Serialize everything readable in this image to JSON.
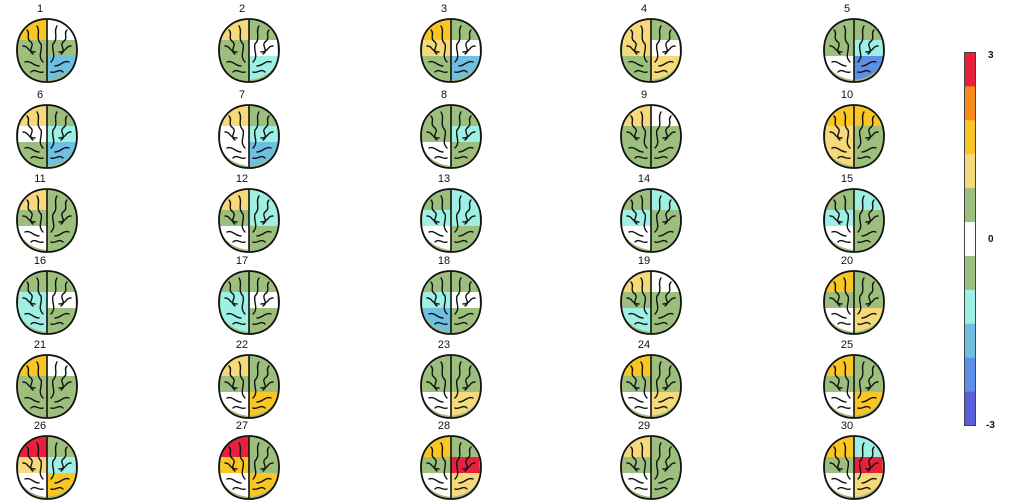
{
  "figure": {
    "panels": [
      {
        "label": "1",
        "colors": [
          "#f9c623",
          "#9dbf7d",
          "#9dbf7d",
          "#ffffff",
          "#9dbf7d",
          "#6fbfe0"
        ]
      },
      {
        "label": "2",
        "colors": [
          "#f6d97a",
          "#9dbf7d",
          "#9dbf7d",
          "#9dbf7d",
          "#ffffff",
          "#9ff0e4"
        ]
      },
      {
        "label": "3",
        "colors": [
          "#f9c623",
          "#f6d97a",
          "#9dbf7d",
          "#9dbf7d",
          "#ffffff",
          "#6fbfe0"
        ]
      },
      {
        "label": "4",
        "colors": [
          "#f6d97a",
          "#f6d97a",
          "#9dbf7d",
          "#9dbf7d",
          "#ffffff",
          "#f6d97a"
        ]
      },
      {
        "label": "5",
        "colors": [
          "#9dbf7d",
          "#9dbf7d",
          "#ffffff",
          "#9dbf7d",
          "#9ff0e4",
          "#5b8fe8"
        ]
      },
      {
        "label": "6",
        "colors": [
          "#f6d97a",
          "#ffffff",
          "#9dbf7d",
          "#9dbf7d",
          "#9ff0e4",
          "#6fbfe0"
        ]
      },
      {
        "label": "7",
        "colors": [
          "#f6d97a",
          "#ffffff",
          "#ffffff",
          "#9dbf7d",
          "#9ff0e4",
          "#6fbfe0"
        ]
      },
      {
        "label": "8",
        "colors": [
          "#9dbf7d",
          "#9dbf7d",
          "#ffffff",
          "#9dbf7d",
          "#9ff0e4",
          "#9dbf7d"
        ]
      },
      {
        "label": "9",
        "colors": [
          "#f6d97a",
          "#9dbf7d",
          "#9dbf7d",
          "#ffffff",
          "#9dbf7d",
          "#9dbf7d"
        ]
      },
      {
        "label": "10",
        "colors": [
          "#f9c623",
          "#f6d97a",
          "#f6d97a",
          "#f9c623",
          "#9dbf7d",
          "#9dbf7d"
        ]
      },
      {
        "label": "11",
        "colors": [
          "#f6d97a",
          "#9dbf7d",
          "#ffffff",
          "#9dbf7d",
          "#9dbf7d",
          "#9dbf7d"
        ]
      },
      {
        "label": "12",
        "colors": [
          "#f6d97a",
          "#9dbf7d",
          "#ffffff",
          "#9ff0e4",
          "#9ff0e4",
          "#9dbf7d"
        ]
      },
      {
        "label": "13",
        "colors": [
          "#9dbf7d",
          "#9ff0e4",
          "#ffffff",
          "#9ff0e4",
          "#9ff0e4",
          "#9dbf7d"
        ]
      },
      {
        "label": "14",
        "colors": [
          "#9dbf7d",
          "#9ff0e4",
          "#ffffff",
          "#9ff0e4",
          "#9dbf7d",
          "#9dbf7d"
        ]
      },
      {
        "label": "15",
        "colors": [
          "#9dbf7d",
          "#9ff0e4",
          "#ffffff",
          "#9ff0e4",
          "#9dbf7d",
          "#9dbf7d"
        ]
      },
      {
        "label": "16",
        "colors": [
          "#9dbf7d",
          "#9ff0e4",
          "#9ff0e4",
          "#9dbf7d",
          "#ffffff",
          "#9dbf7d"
        ]
      },
      {
        "label": "17",
        "colors": [
          "#9dbf7d",
          "#9ff0e4",
          "#9ff0e4",
          "#9dbf7d",
          "#ffffff",
          "#9dbf7d"
        ]
      },
      {
        "label": "18",
        "colors": [
          "#9dbf7d",
          "#9ff0e4",
          "#6fbfe0",
          "#9dbf7d",
          "#ffffff",
          "#9dbf7d"
        ]
      },
      {
        "label": "19",
        "colors": [
          "#f6d97a",
          "#9dbf7d",
          "#9ff0e4",
          "#ffffff",
          "#9dbf7d",
          "#9dbf7d"
        ]
      },
      {
        "label": "20",
        "colors": [
          "#f9c623",
          "#9dbf7d",
          "#ffffff",
          "#9dbf7d",
          "#9dbf7d",
          "#f6d97a"
        ]
      },
      {
        "label": "21",
        "colors": [
          "#f9c623",
          "#9dbf7d",
          "#9dbf7d",
          "#ffffff",
          "#9dbf7d",
          "#9dbf7d"
        ]
      },
      {
        "label": "22",
        "colors": [
          "#f6d97a",
          "#9dbf7d",
          "#ffffff",
          "#9dbf7d",
          "#9dbf7d",
          "#f9c623"
        ]
      },
      {
        "label": "23",
        "colors": [
          "#9dbf7d",
          "#9dbf7d",
          "#ffffff",
          "#9dbf7d",
          "#9dbf7d",
          "#f6d97a"
        ]
      },
      {
        "label": "24",
        "colors": [
          "#f9c623",
          "#9dbf7d",
          "#ffffff",
          "#9dbf7d",
          "#9dbf7d",
          "#f6d97a"
        ]
      },
      {
        "label": "25",
        "colors": [
          "#f9c623",
          "#9dbf7d",
          "#ffffff",
          "#9dbf7d",
          "#9dbf7d",
          "#f9c623"
        ]
      },
      {
        "label": "26",
        "colors": [
          "#e8203c",
          "#f6d97a",
          "#ffffff",
          "#9dbf7d",
          "#9ff0e4",
          "#f9c623"
        ]
      },
      {
        "label": "27",
        "colors": [
          "#e8203c",
          "#f9c623",
          "#ffffff",
          "#9dbf7d",
          "#9dbf7d",
          "#f9c623"
        ]
      },
      {
        "label": "28",
        "colors": [
          "#f9c623",
          "#9dbf7d",
          "#ffffff",
          "#9dbf7d",
          "#e8203c",
          "#f6d97a"
        ]
      },
      {
        "label": "29",
        "colors": [
          "#f6d97a",
          "#9dbf7d",
          "#ffffff",
          "#9dbf7d",
          "#9dbf7d",
          "#9dbf7d"
        ]
      },
      {
        "label": "30",
        "colors": [
          "#f9c623",
          "#9dbf7d",
          "#ffffff",
          "#9ff0e4",
          "#e8203c",
          "#f6d97a"
        ]
      }
    ]
  },
  "colorbar": {
    "max_label": "3",
    "mid_label": "0",
    "min_label": "-3",
    "stops": [
      "#e8203c",
      "#f98a1a",
      "#f9c623",
      "#f6d97a",
      "#9dbf7d",
      "#ffffff",
      "#9dbf7d",
      "#9ff0e4",
      "#6fbfe0",
      "#5b8fe8",
      "#5b5fd8"
    ]
  }
}
